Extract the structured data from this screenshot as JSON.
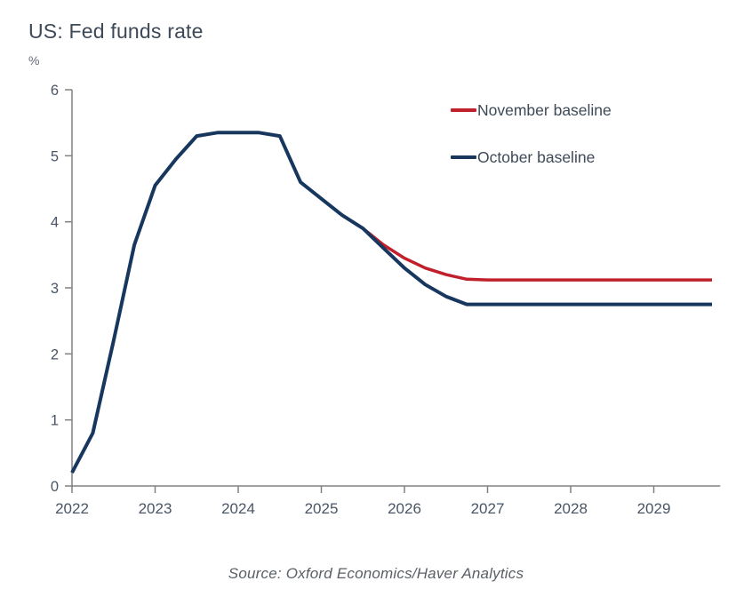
{
  "title": "US: Fed funds rate",
  "unit_label": "%",
  "legend": [
    {
      "label": "November baseline",
      "color": "#c0202c"
    },
    {
      "label": "October baseline",
      "color": "#17375e"
    }
  ],
  "source": "Source: Oxford Economics/Haver Analytics",
  "colors": {
    "november_red": "#c0202c",
    "october_navy": "#17375e",
    "axis_gray": "#808080",
    "tick_label": "#4a5566",
    "title_text": "#3e4957"
  },
  "chart_data": {
    "type": "line",
    "title": "US: Fed funds rate",
    "xlabel": "",
    "ylabel": "%",
    "ylim": [
      0,
      6
    ],
    "y_ticks": [
      0,
      1,
      2,
      3,
      4,
      5,
      6
    ],
    "x_ticks": [
      2022,
      2023,
      2024,
      2025,
      2026,
      2027,
      2028,
      2029
    ],
    "x_range": [
      2022,
      2029.8
    ],
    "grid": false,
    "legend_position": "top-right",
    "series": [
      {
        "name": "November baseline",
        "color": "#c0202c",
        "line_width": 3.5,
        "points": [
          [
            2025.5,
            3.9
          ],
          [
            2025.75,
            3.65
          ],
          [
            2026.0,
            3.45
          ],
          [
            2026.25,
            3.3
          ],
          [
            2026.5,
            3.2
          ],
          [
            2026.75,
            3.13
          ],
          [
            2027.0,
            3.12
          ],
          [
            2027.5,
            3.12
          ],
          [
            2028.0,
            3.12
          ],
          [
            2028.5,
            3.12
          ],
          [
            2029.0,
            3.12
          ],
          [
            2029.7,
            3.12
          ]
        ]
      },
      {
        "name": "October baseline",
        "color": "#17375e",
        "line_width": 4,
        "points": [
          [
            2022.0,
            0.2
          ],
          [
            2022.25,
            0.8
          ],
          [
            2022.5,
            2.2
          ],
          [
            2022.75,
            3.65
          ],
          [
            2023.0,
            4.55
          ],
          [
            2023.25,
            4.95
          ],
          [
            2023.5,
            5.3
          ],
          [
            2023.75,
            5.35
          ],
          [
            2024.0,
            5.35
          ],
          [
            2024.25,
            5.35
          ],
          [
            2024.5,
            5.3
          ],
          [
            2024.75,
            4.6
          ],
          [
            2025.0,
            4.35
          ],
          [
            2025.25,
            4.1
          ],
          [
            2025.5,
            3.9
          ],
          [
            2025.75,
            3.6
          ],
          [
            2026.0,
            3.3
          ],
          [
            2026.25,
            3.05
          ],
          [
            2026.5,
            2.87
          ],
          [
            2026.75,
            2.75
          ],
          [
            2027.0,
            2.75
          ],
          [
            2027.5,
            2.75
          ],
          [
            2028.0,
            2.75
          ],
          [
            2028.5,
            2.75
          ],
          [
            2029.0,
            2.75
          ],
          [
            2029.7,
            2.75
          ]
        ]
      }
    ]
  }
}
